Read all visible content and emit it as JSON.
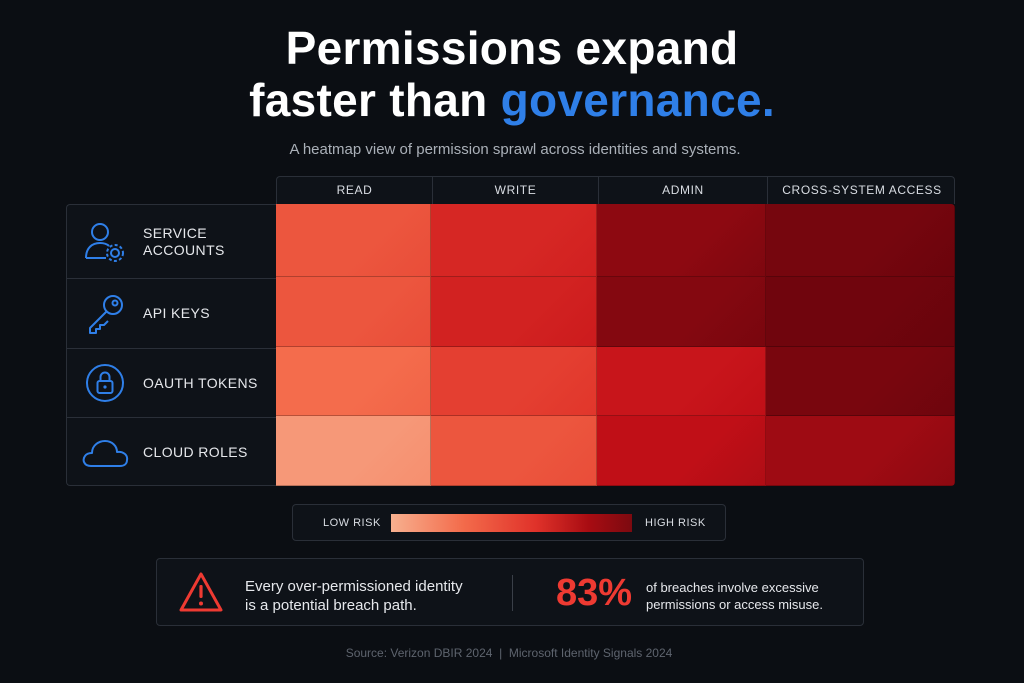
{
  "header": {
    "title_line1": "Permissions expand",
    "title_line2_plain": "faster than ",
    "title_line2_accent": "governance.",
    "subtitle": "A heatmap view of permission sprawl across identities and systems."
  },
  "chart_data": {
    "type": "heatmap",
    "columns": [
      "READ",
      "WRITE",
      "ADMIN",
      "CROSS-SYSTEM ACCESS"
    ],
    "rows": [
      {
        "label": "SERVICE\nACCOUNTS",
        "icon": "user-gear-icon"
      },
      {
        "label": "API KEYS",
        "icon": "key-icon"
      },
      {
        "label": "OAUTH TOKENS",
        "icon": "lock-circle-icon"
      },
      {
        "label": "CLOUD ROLES",
        "icon": "cloud-icon"
      }
    ],
    "risk_values": [
      [
        0.4,
        0.62,
        0.88,
        0.95
      ],
      [
        0.4,
        0.65,
        0.9,
        0.97
      ],
      [
        0.3,
        0.5,
        0.72,
        0.94
      ],
      [
        0.12,
        0.4,
        0.76,
        0.84
      ]
    ],
    "scale": {
      "min": 0,
      "max": 1,
      "low_label": "LOW RISK",
      "high_label": "HIGH RISK"
    }
  },
  "callout": {
    "statement": "Every over-permissioned identity\nis a potential breach path.",
    "stat_value": "83%",
    "stat_text": "of breaches involve excessive\npermissions or access misuse."
  },
  "source": "Source: Verizon DBIR 2024  |  Microsoft Identity Signals 2024",
  "colors": {
    "accent": "#2f7fe8",
    "icon": "#2f7fe8",
    "stat": "#ee3a32",
    "background": "#0b0e13"
  }
}
